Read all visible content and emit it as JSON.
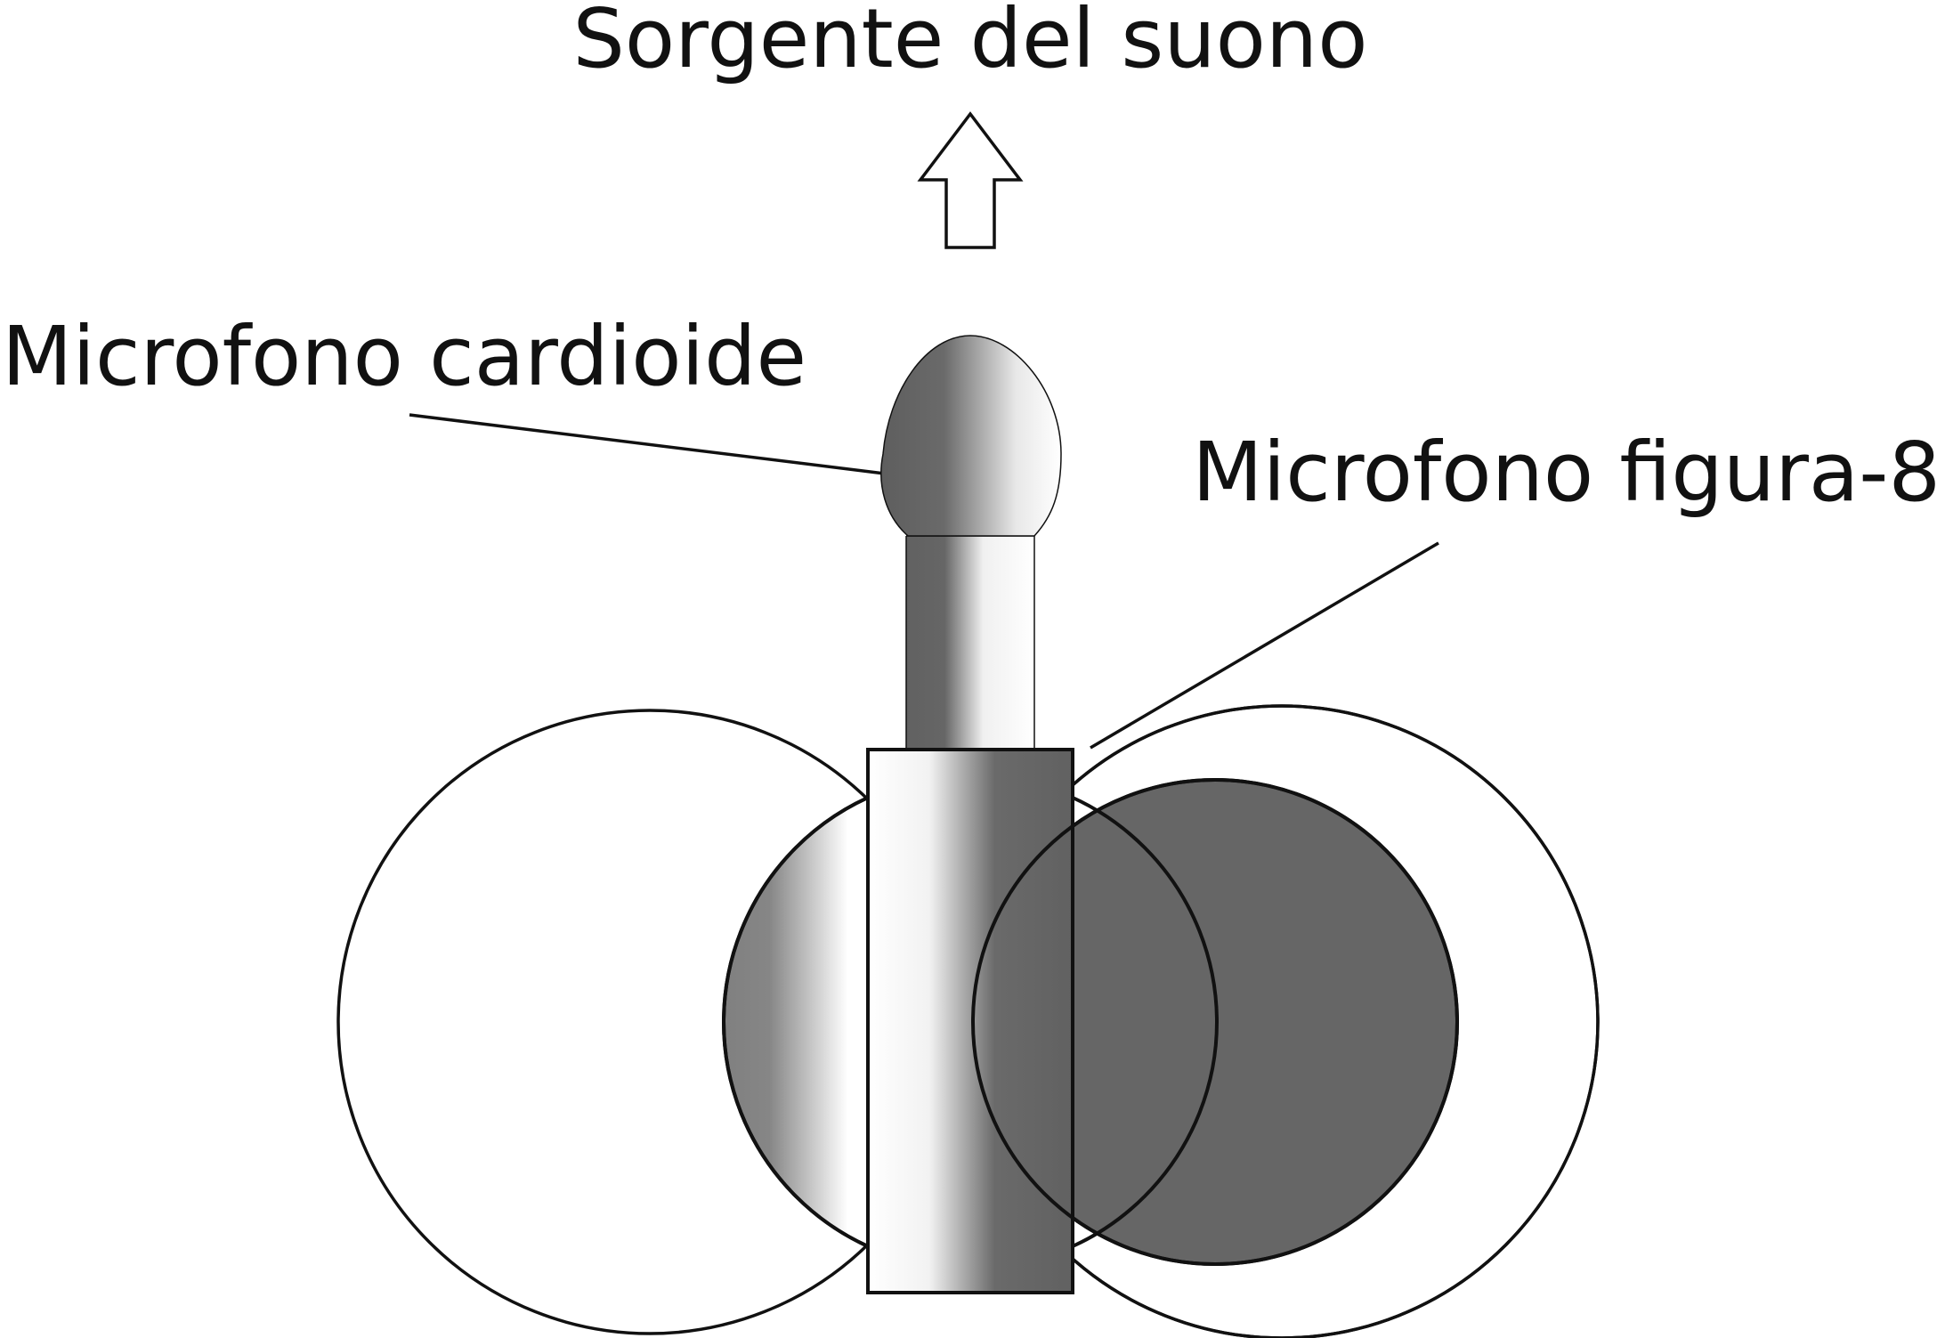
{
  "labels": {
    "sound_source": "Sorgente del suono",
    "cardioid_mic": "Microfono cardioide",
    "figure8_mic": "Microfono figura-8"
  },
  "colors": {
    "ink": "#111111",
    "dark_gray": "#666666",
    "mid_gray": "#808080",
    "white": "#ffffff"
  }
}
